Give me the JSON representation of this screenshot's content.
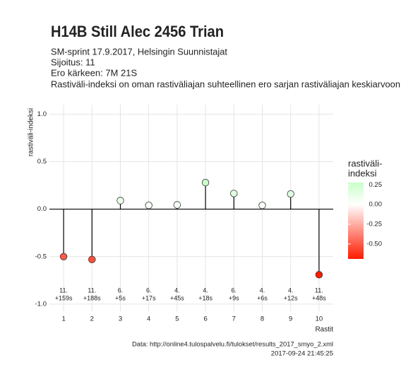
{
  "chart_data": {
    "type": "lollipop",
    "title": "H14B Still Alec 2456 Trian",
    "subtitle": [
      "SM-sprint 17.9.2017, Helsingin Suunnistajat",
      "Sijoitus: 11",
      "Ero kärkeen: 7M 21S",
      "Rastiväli-indeksi on oman rastiväliajan suhteellinen ero sarjan rastiväliajan keskiarvoon"
    ],
    "ylabel": "rastiväli-indeksi",
    "xlabel": "Rastit",
    "x": [
      1,
      2,
      3,
      4,
      5,
      6,
      7,
      8,
      9,
      10
    ],
    "values": [
      -0.5,
      -0.53,
      0.09,
      0.04,
      0.045,
      0.28,
      0.165,
      0.04,
      0.16,
      -0.69
    ],
    "annotations": [
      {
        "rank": "11.",
        "diff": "+159s"
      },
      {
        "rank": "11.",
        "diff": "+188s"
      },
      {
        "rank": "6.",
        "diff": "+5s"
      },
      {
        "rank": "6.",
        "diff": "+17s"
      },
      {
        "rank": "4.",
        "diff": "+45s"
      },
      {
        "rank": "4.",
        "diff": "+18s"
      },
      {
        "rank": "6.",
        "diff": "+9s"
      },
      {
        "rank": "4.",
        "diff": "+6s"
      },
      {
        "rank": "4.",
        "diff": "+12s"
      },
      {
        "rank": "11.",
        "diff": "+48s"
      }
    ],
    "xlim": [
      0.5,
      10.5
    ],
    "xticks": [
      1,
      2,
      3,
      4,
      5,
      6,
      7,
      8,
      9,
      10
    ],
    "ylim": [
      -1.075,
      1.1
    ],
    "yticks": [
      {
        "value": 1,
        "label": "1.0"
      },
      {
        "value": 0.5,
        "label": "0.5"
      },
      {
        "value": 0,
        "label": "0.0"
      },
      {
        "value": -0.5,
        "label": "-0.5"
      },
      {
        "value": -1,
        "label": "-1.0"
      }
    ],
    "grid": true,
    "legend_title": [
      "rastiväli-",
      "indeksi"
    ],
    "legend_ticks": [
      0.25,
      {
        "value": 0,
        "label": "0.00"
      },
      -0.25,
      {
        "value": -0.5,
        "label": "-0.50"
      }
    ],
    "color_low": "#ff1a00",
    "color_mid": "#ffffff",
    "color_high": "#c8ffc8",
    "caption": [
      "Data: http://online4.tulospalvelu.fi/tulokset/results_2017_smyo_2.xml",
      "2017-09-24 21:45:25"
    ]
  }
}
